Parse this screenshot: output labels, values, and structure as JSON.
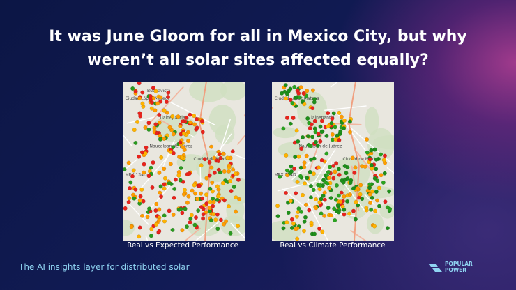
{
  "title": {
    "line1": "It was June Gloom for all in Mexico City, but why",
    "line2": "weren’t all solar sites affected equally?"
  },
  "maps": [
    {
      "caption": "Real vs Expected Performance",
      "labels": [
        "Buenavista",
        "Ciudad López Mateos",
        "Tlalnepantla",
        "Naucalpan de Juárez",
        "Ciudad de México",
        "MEX 134D"
      ]
    },
    {
      "caption": "Real vs Climate Performance",
      "labels": [
        "Ciudad López Mateos",
        "Tlalnepantla",
        "Naucalpan de Juárez",
        "Ciudad de México",
        "MEX 134D"
      ]
    }
  ],
  "tagline": "The AI insights layer for distributed solar",
  "logo": {
    "line1": "POPULAR",
    "line2": "POWER"
  }
}
